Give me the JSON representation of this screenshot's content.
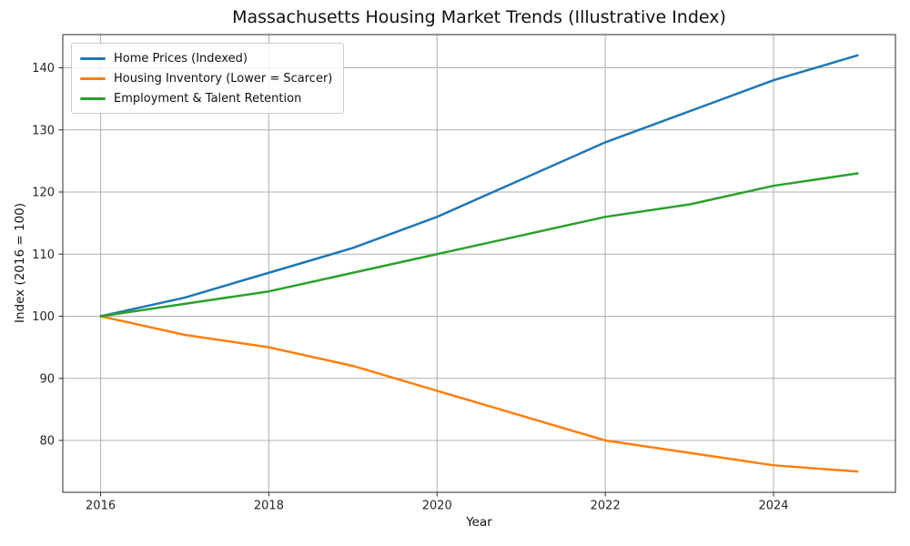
{
  "chart_data": {
    "type": "line",
    "title": "Massachusetts Housing Market Trends (Illustrative Index)",
    "xlabel": "Year",
    "ylabel": "Index (2016 = 100)",
    "x": [
      2016,
      2017,
      2018,
      2019,
      2020,
      2021,
      2022,
      2023,
      2024,
      2025
    ],
    "series": [
      {
        "name": "Home Prices (Indexed)",
        "color": "#1f77b4",
        "values": [
          100,
          103,
          107,
          111,
          116,
          122,
          128,
          133,
          138,
          142
        ]
      },
      {
        "name": "Housing Inventory (Lower = Scarcer)",
        "color": "#ff7f0e",
        "values": [
          100,
          97,
          95,
          92,
          88,
          84,
          80,
          78,
          76,
          75
        ]
      },
      {
        "name": "Employment & Talent Retention",
        "color": "#2ca02c",
        "values": [
          100,
          102,
          104,
          107,
          110,
          113,
          116,
          118,
          121,
          123
        ]
      }
    ],
    "xticks": [
      2016,
      2018,
      2020,
      2022,
      2024
    ],
    "yticks": [
      80,
      90,
      100,
      110,
      120,
      130,
      140
    ],
    "xlim": [
      2015.55,
      2025.45
    ],
    "ylim": [
      71.65,
      145.35
    ],
    "grid": true,
    "grid_color": "#b0b0b0",
    "spine_color": "#2b2b2b",
    "legend_position": "upper left",
    "line_width": 2.5
  }
}
